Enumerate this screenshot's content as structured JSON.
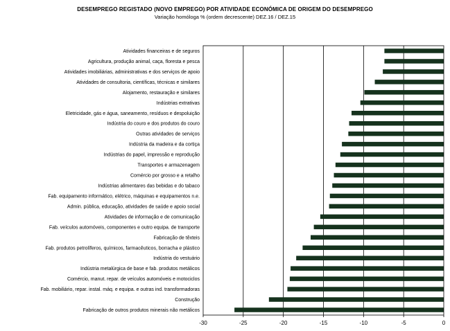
{
  "chart_data": {
    "type": "bar",
    "orientation": "horizontal",
    "title": "DESEMPREGO REGISTADO (NOVO EMPREGO) POR ATIVIDADE ECONÓMICA DE ORIGEM DO DESEMPREGO",
    "subtitle": "Variação homóloga %   (ordem decrescente) DEZ.16 / DEZ.15",
    "categories": [
      "Atividades financeiras e de seguros",
      "Agricultura, produção animal, caça, floresta e pesca",
      "Atividades imobiliárias, administrativas e dos serviços de apoio",
      "Atividades de consultoria, científicas, técnicas e similares",
      "Alojamento, restauração e similares",
      "Indústrias extrativas",
      "Eletricidade, gás e água, saneamento, resíduos e despoluição",
      "Indústria do couro e dos produtos do couro",
      "Outras atividades de serviços",
      "Indústria da madeira e da cortiça",
      "Indústrias do papel, impressão e reprodução",
      "Transportes e armazenagem",
      "Comércio por grosso e a retalho",
      "Indústrias alimentares das bebidas e do tabaco",
      "Fab. equipamento informático, elétrico, máquinas e equipamentos n.e.",
      "Admin. pública, educação, atividades de saúde e apoio social",
      "Atividades de informação e de comunicação",
      "Fab. veículos automóveis, componentes e outro equipa. de transporte",
      "Fabricação de têxteis",
      "Fab. produtos petrolíferos, químicos, farmacêuticos, borracha e plástico",
      "Indústria do vestuário",
      "Indústria metalúrgica de base e fab. produtos metálicos",
      "Comércio, manut. repar. de veículos automóveis e motociclos",
      "Fab. mobiliário, repar. instal. máq. e equipa. e outras ind. transformadoras",
      "Construção",
      "Fabricação de outros produtos minerais não metálicos"
    ],
    "values": [
      -7.4,
      -7.4,
      -7.6,
      -8.6,
      -9.9,
      -10.4,
      -11.5,
      -11.8,
      -11.9,
      -12.7,
      -12.9,
      -13.5,
      -13.7,
      -13.9,
      -14.2,
      -14.3,
      -15.4,
      -16.2,
      -16.6,
      -17.6,
      -18.4,
      -19.1,
      -19.2,
      -19.5,
      -21.8,
      -26.1
    ],
    "xlim": [
      -30,
      0
    ],
    "xticks": [
      -30,
      -25,
      -20,
      -15,
      -10,
      -5,
      0
    ],
    "gridlines": "vertical",
    "bar_color": "#15321d"
  }
}
